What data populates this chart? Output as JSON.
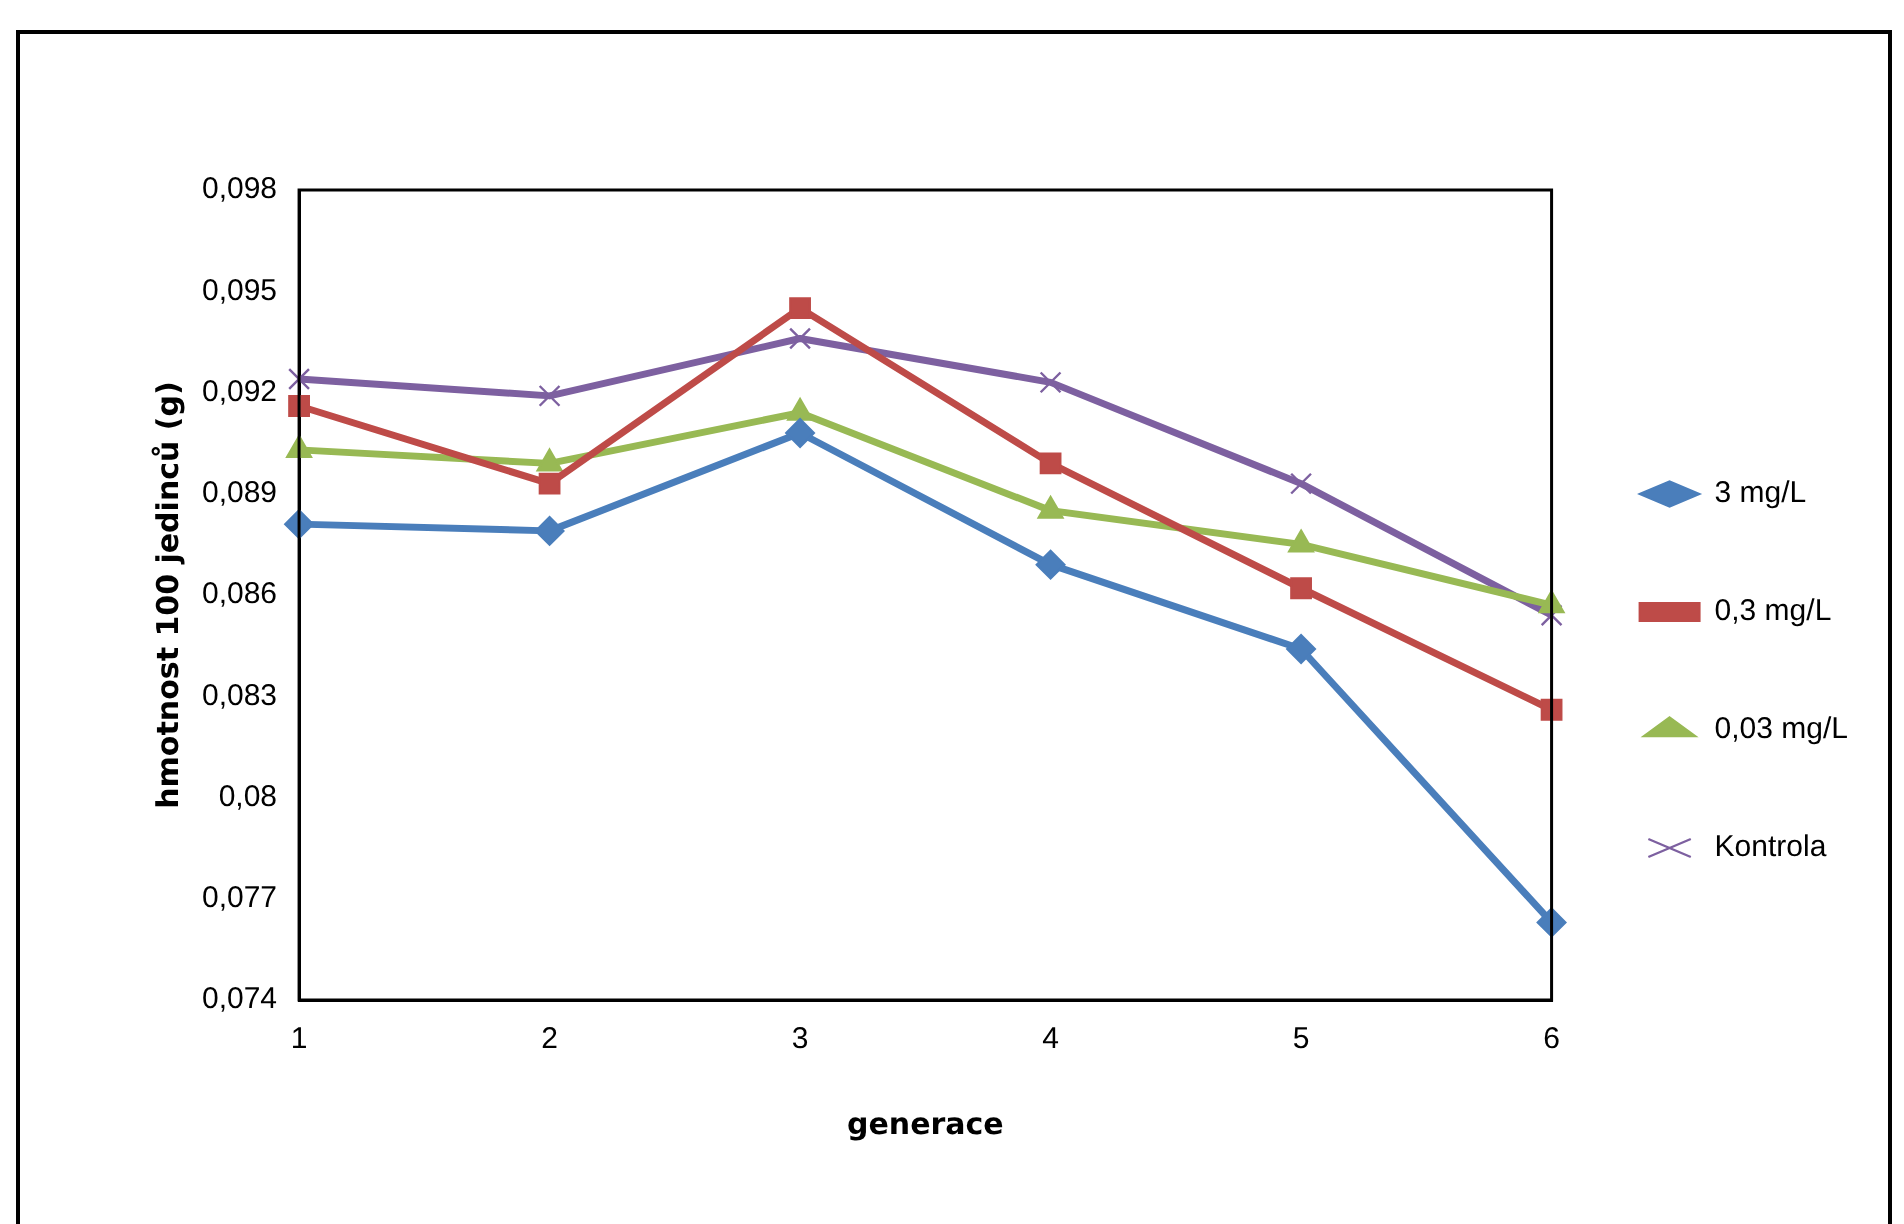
{
  "chart_data": {
    "type": "line",
    "xlabel": "generace",
    "ylabel": "hmotnost 100 jedinců (g)",
    "categories": [
      "1",
      "2",
      "3",
      "4",
      "5",
      "6"
    ],
    "ylim": [
      0.074,
      0.098
    ],
    "yticks": [
      {
        "value": 0.074,
        "label": "0,074"
      },
      {
        "value": 0.077,
        "label": "0,077"
      },
      {
        "value": 0.08,
        "label": "0,08"
      },
      {
        "value": 0.083,
        "label": "0,083"
      },
      {
        "value": 0.086,
        "label": "0,086"
      },
      {
        "value": 0.089,
        "label": "0,089"
      },
      {
        "value": 0.092,
        "label": "0,092"
      },
      {
        "value": 0.095,
        "label": "0,095"
      },
      {
        "value": 0.098,
        "label": "0,098"
      }
    ],
    "grid": false,
    "legend": "right",
    "series": [
      {
        "name": "3 mg/L",
        "color": "#4a7ebb",
        "marker": "diamond",
        "values": [
          0.0881,
          0.0879,
          0.0908,
          0.0869,
          0.0844,
          0.0763
        ]
      },
      {
        "name": "0,3 mg/L",
        "color": "#be4b48",
        "marker": "square",
        "values": [
          0.0916,
          0.0893,
          0.0945,
          0.0899,
          0.0862,
          0.0826
        ]
      },
      {
        "name": "0,03 mg/L",
        "color": "#98b954",
        "marker": "triangle",
        "values": [
          0.0903,
          0.0899,
          0.0914,
          0.0885,
          0.0875,
          0.0857
        ]
      },
      {
        "name": "Kontrola",
        "color": "#7d60a0",
        "marker": "cross",
        "values": [
          0.0924,
          0.0919,
          0.0936,
          0.0923,
          0.0893,
          0.0854
        ]
      }
    ]
  }
}
